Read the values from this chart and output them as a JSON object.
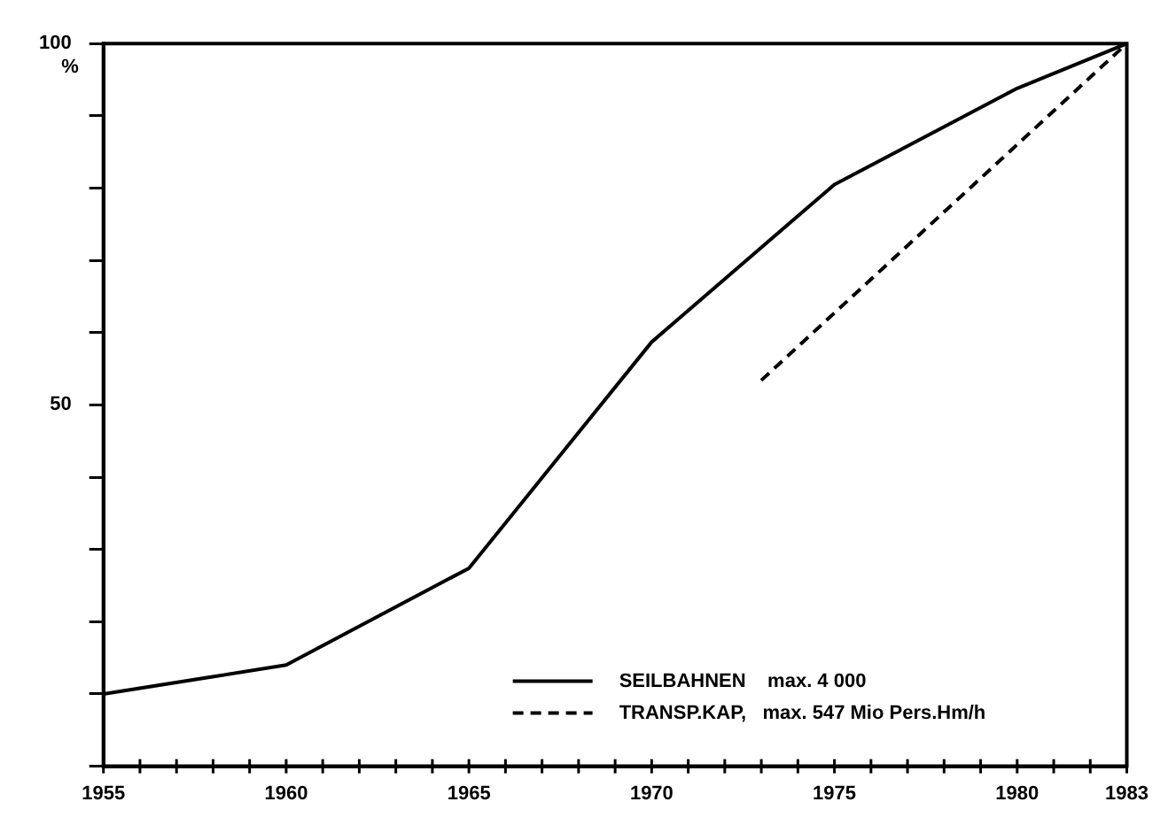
{
  "chart_data": {
    "type": "line",
    "ylabel": "%",
    "x": [
      1955,
      1960,
      1965,
      1970,
      1975,
      1980,
      1983
    ],
    "series": [
      {
        "name": "SEILBAHNEN    max. 4 000",
        "color": "#000000",
        "line_style": "solid",
        "values": [
          10,
          14,
          27.4,
          58.7,
          80.5,
          93.8,
          100
        ]
      },
      {
        "name": "TRANSP.KAP,   max. 547 Mio Pers.Hm/h",
        "color": "#000000",
        "line_style": "dashed",
        "x": [
          1973,
          1983
        ],
        "values": [
          53.4,
          100
        ]
      }
    ],
    "xlim": [
      1955,
      1983
    ],
    "xticks": [
      1955,
      1960,
      1965,
      1970,
      1975,
      1980,
      1983
    ],
    "ylim": [
      0,
      100
    ],
    "yticks": [
      {
        "value": 0,
        "label": null
      },
      {
        "value": 10,
        "label": null
      },
      {
        "value": 20,
        "label": null
      },
      {
        "value": 30,
        "label": null
      },
      {
        "value": 40,
        "label": null
      },
      50,
      {
        "value": 60,
        "label": null
      },
      {
        "value": 70,
        "label": null
      },
      {
        "value": 80,
        "label": null
      },
      {
        "value": 90,
        "label": null
      },
      100
    ],
    "grid": false,
    "legend": "bottom right",
    "marker": "none"
  }
}
